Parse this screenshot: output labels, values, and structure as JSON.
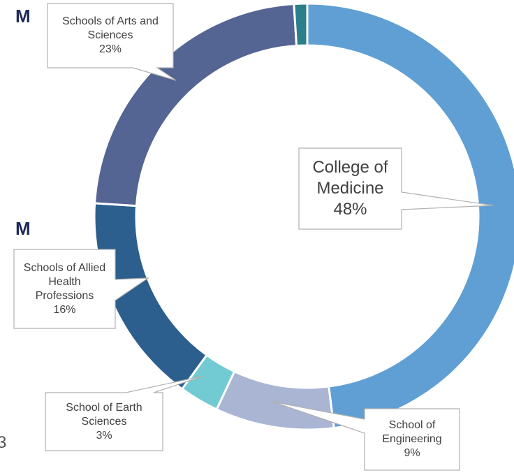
{
  "chart_data": {
    "type": "donut",
    "categories": [
      "College of Medicine",
      "School of Engineering",
      "School of Earth Sciences",
      "Schools of Allied Health Professions",
      "Schools of Arts and Sciences",
      null
    ],
    "values": [
      48,
      9,
      3,
      16,
      23,
      1
    ],
    "value_labels": [
      "48%",
      "9%",
      "3%",
      "16%",
      "23%",
      null
    ],
    "colors": [
      "#609fd4",
      "#a9b5d3",
      "#72cbd3",
      "#2c5f8d",
      "#546493",
      "#2a7f8a"
    ]
  },
  "edge_fragments": [
    "M",
    "M",
    "3"
  ]
}
